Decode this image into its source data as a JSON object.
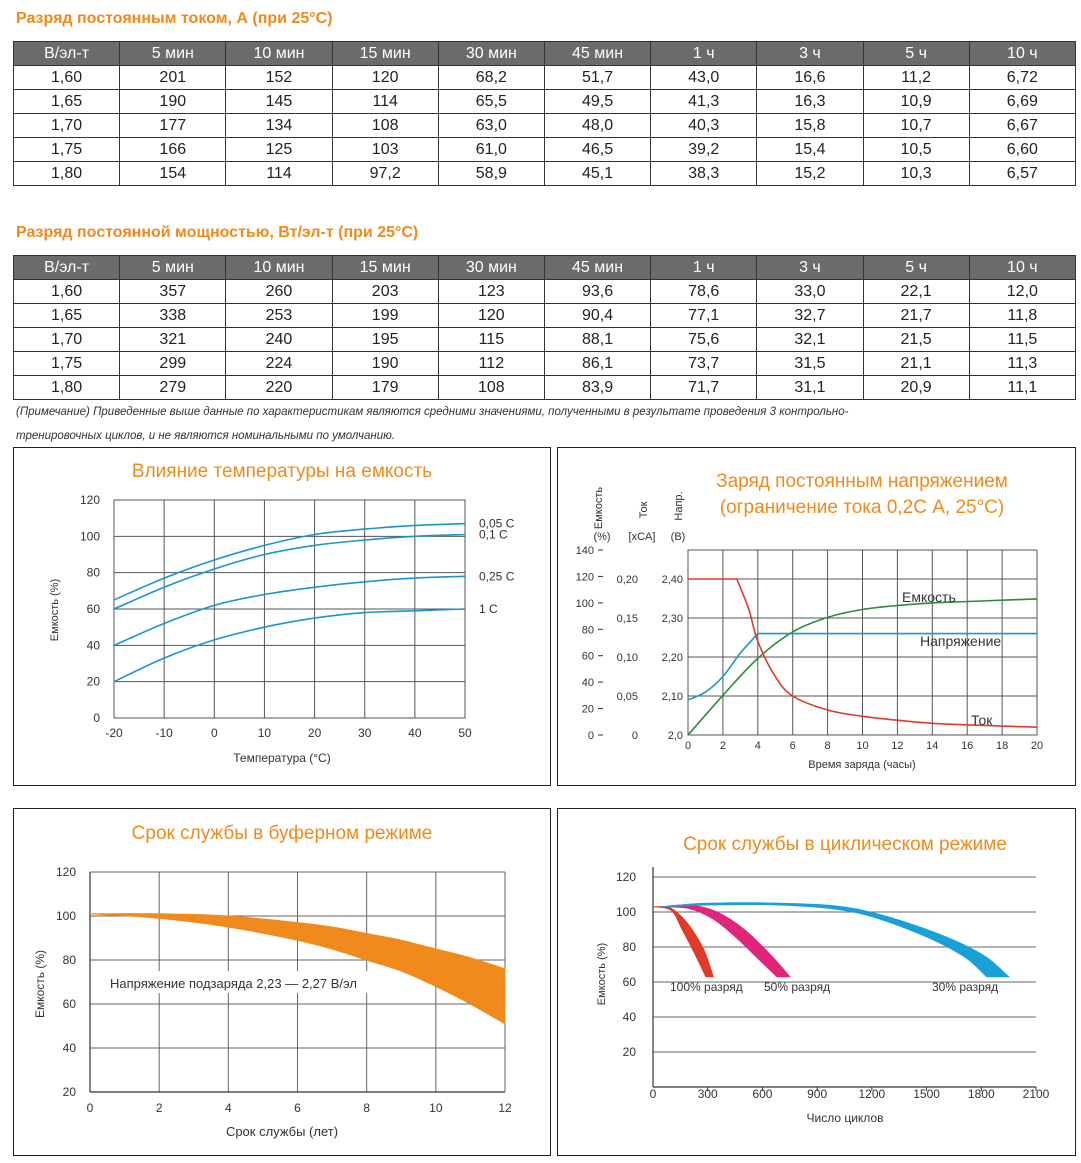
{
  "table1": {
    "title": "Разряд постоянным током, А (при 25°C)",
    "headers": [
      "В/эл-т",
      "5 мин",
      "10 мин",
      "15 мин",
      "30 мин",
      "45 мин",
      "1 ч",
      "3 ч",
      "5 ч",
      "10 ч"
    ],
    "rows": [
      [
        "1,60",
        "201",
        "152",
        "120",
        "68,2",
        "51,7",
        "43,0",
        "16,6",
        "11,2",
        "6,72"
      ],
      [
        "1,65",
        "190",
        "145",
        "114",
        "65,5",
        "49,5",
        "41,3",
        "16,3",
        "10,9",
        "6,69"
      ],
      [
        "1,70",
        "177",
        "134",
        "108",
        "63,0",
        "48,0",
        "40,3",
        "15,8",
        "10,7",
        "6,67"
      ],
      [
        "1,75",
        "166",
        "125",
        "103",
        "61,0",
        "46,5",
        "39,2",
        "15,4",
        "10,5",
        "6,60"
      ],
      [
        "1,80",
        "154",
        "114",
        "97,2",
        "58,9",
        "45,1",
        "38,3",
        "15,2",
        "10,3",
        "6,57"
      ]
    ]
  },
  "table2": {
    "title": "Разряд постоянной мощностью, Вт/эл-т (при 25°C)",
    "headers": [
      "В/эл-т",
      "5 мин",
      "10 мин",
      "15 мин",
      "30 мин",
      "45 мин",
      "1 ч",
      "3 ч",
      "5 ч",
      "10 ч"
    ],
    "rows": [
      [
        "1,60",
        "357",
        "260",
        "203",
        "123",
        "93,6",
        "78,6",
        "33,0",
        "22,1",
        "12,0"
      ],
      [
        "1,65",
        "338",
        "253",
        "199",
        "120",
        "90,4",
        "77,1",
        "32,7",
        "21,7",
        "11,8"
      ],
      [
        "1,70",
        "321",
        "240",
        "195",
        "115",
        "88,1",
        "75,6",
        "32,1",
        "21,5",
        "11,5"
      ],
      [
        "1,75",
        "299",
        "224",
        "190",
        "112",
        "86,1",
        "73,7",
        "31,5",
        "21,1",
        "11,3"
      ],
      [
        "1,80",
        "279",
        "220",
        "179",
        "108",
        "83,9",
        "71,7",
        "31,1",
        "20,9",
        "11,1"
      ]
    ]
  },
  "note": {
    "line1": "(Примечание) Приведенные выше данные по характеристикам являются средними значениями, полученными в результате проведения 3 контрольно-",
    "line2": "тренировочных циклов, и не являются номинальными по умолчанию."
  },
  "colors": {
    "orange": "#f08a1c",
    "blue": "#1a96c8",
    "green": "#2e8a3a",
    "red": "#e03a2a",
    "magenta": "#e0257a",
    "cyan": "#1aa0d8"
  },
  "chart_data": [
    {
      "type": "line",
      "title": "Влияние температуры на емкость",
      "xlabel": "Температура (°C)",
      "ylabel": "Емкость (%)",
      "x": [
        -20,
        -10,
        0,
        10,
        20,
        30,
        40,
        50
      ],
      "xticks": [
        "-20",
        "-10",
        "0",
        "10",
        "20",
        "30",
        "40",
        "50"
      ],
      "yticks": [
        "0",
        "20",
        "40",
        "60",
        "80",
        "100",
        "120"
      ],
      "xlim": [
        -20,
        50
      ],
      "ylim": [
        0,
        120
      ],
      "series": [
        {
          "name": "0,05 C",
          "values": [
            65,
            77,
            87,
            95,
            101,
            104,
            106,
            107
          ]
        },
        {
          "name": "0,1 C",
          "values": [
            60,
            72,
            82,
            90,
            95,
            98,
            100,
            101
          ]
        },
        {
          "name": "0,25 C",
          "values": [
            40,
            52,
            62,
            68,
            72,
            75,
            77,
            78
          ]
        },
        {
          "name": "1 C",
          "values": [
            20,
            33,
            43,
            50,
            55,
            58,
            59,
            60
          ]
        }
      ]
    },
    {
      "type": "line",
      "title": [
        "Заряд постоянным напряжением",
        "(ограничение тока 0,2С А, 25°C)"
      ],
      "xlabel": "Время заряда (часы)",
      "axis_headers": {
        "capacity": [
          "Емкость",
          "(%)"
        ],
        "current": [
          "Ток",
          "[xCA]"
        ],
        "voltage": [
          "Напр.",
          "(В)"
        ]
      },
      "x": [
        0,
        2,
        4,
        6,
        8,
        10,
        12,
        14,
        16,
        18,
        20
      ],
      "xticks": [
        "0",
        "2",
        "4",
        "6",
        "8",
        "10",
        "12",
        "14",
        "16",
        "18",
        "20"
      ],
      "capacity_ticks": [
        "0",
        "20",
        "40",
        "60",
        "80",
        "100",
        "120",
        "140"
      ],
      "current_ticks": [
        "0",
        "0,05",
        "0,10",
        "0,15",
        "0,20"
      ],
      "voltage_ticks": [
        "2,0",
        "2,10",
        "2,20",
        "2,30",
        "2,40"
      ],
      "series": [
        {
          "name": "Емкость",
          "axis": "capacity",
          "x": [
            0,
            2,
            4,
            6,
            8,
            10,
            12,
            14,
            16,
            18,
            20
          ],
          "values": [
            0,
            30,
            58,
            78,
            89,
            95,
            98,
            100,
            101,
            102,
            103
          ]
        },
        {
          "name": "Напряжение",
          "axis": "voltage",
          "x": [
            0,
            1,
            2,
            3,
            4,
            20
          ],
          "values": [
            2.09,
            2.11,
            2.15,
            2.21,
            2.26,
            2.26
          ]
        },
        {
          "name": "Ток",
          "axis": "current",
          "x": [
            0,
            2.8,
            3.5,
            4,
            5,
            6,
            8,
            10,
            12,
            14,
            16,
            20
          ],
          "values": [
            0.2,
            0.2,
            0.16,
            0.12,
            0.075,
            0.05,
            0.032,
            0.024,
            0.019,
            0.015,
            0.013,
            0.01
          ]
        }
      ]
    },
    {
      "type": "area",
      "title": "Срок службы в буферном режиме",
      "xlabel": "Срок службы (лет)",
      "ylabel": "Емкость (%)",
      "annotation": "Напряжение подзаряда 2,23 — 2,27 В/эл",
      "xticks": [
        "0",
        "2",
        "4",
        "6",
        "8",
        "10",
        "12"
      ],
      "yticks": [
        "20",
        "40",
        "60",
        "80",
        "100",
        "120"
      ],
      "xlim": [
        0,
        12
      ],
      "ylim": [
        20,
        120
      ],
      "band_x": [
        0,
        2,
        4,
        6,
        7,
        8,
        9,
        10,
        11,
        12
      ],
      "band_upper": [
        101,
        101,
        100,
        97,
        95,
        92,
        89,
        85,
        81,
        76
      ],
      "band_lower": [
        101,
        99,
        95,
        89,
        85,
        80,
        75,
        68,
        60,
        51
      ]
    },
    {
      "type": "area",
      "title": "Срок службы в циклическом режиме",
      "xlabel": "Число циклов",
      "ylabel": "Емкость (%)",
      "xticks": [
        "0",
        "300",
        "600",
        "900",
        "1200",
        "1500",
        "1800",
        "2100"
      ],
      "yticks": [
        "20",
        "40",
        "60",
        "80",
        "100",
        "120"
      ],
      "xlim": [
        0,
        2100
      ],
      "ylim": [
        0,
        120
      ],
      "series": [
        {
          "name": "100% разряд",
          "upper": [
            [
              0,
              103
            ],
            [
              100,
              102
            ],
            [
              200,
              92
            ],
            [
              280,
              78
            ],
            [
              330,
              63
            ]
          ],
          "lower": [
            [
              0,
              103
            ],
            [
              100,
              101
            ],
            [
              160,
              90
            ],
            [
              230,
              76
            ],
            [
              290,
              63
            ]
          ]
        },
        {
          "name": "50% разряд",
          "upper": [
            [
              50,
              103
            ],
            [
              200,
              104
            ],
            [
              350,
              100
            ],
            [
              500,
              90
            ],
            [
              650,
              75
            ],
            [
              750,
              63
            ]
          ],
          "lower": [
            [
              50,
              103
            ],
            [
              200,
              102
            ],
            [
              330,
              96
            ],
            [
              450,
              86
            ],
            [
              580,
              73
            ],
            [
              680,
              63
            ]
          ]
        },
        {
          "name": "30% разряд",
          "upper": [
            [
              50,
              103
            ],
            [
              300,
              105
            ],
            [
              700,
              105
            ],
            [
              1100,
              102
            ],
            [
              1500,
              90
            ],
            [
              1800,
              76
            ],
            [
              1950,
              63
            ]
          ],
          "lower": [
            [
              50,
              103
            ],
            [
              300,
              104
            ],
            [
              700,
              104
            ],
            [
              1100,
              100
            ],
            [
              1450,
              88
            ],
            [
              1700,
              75
            ],
            [
              1830,
              63
            ]
          ]
        }
      ]
    }
  ]
}
